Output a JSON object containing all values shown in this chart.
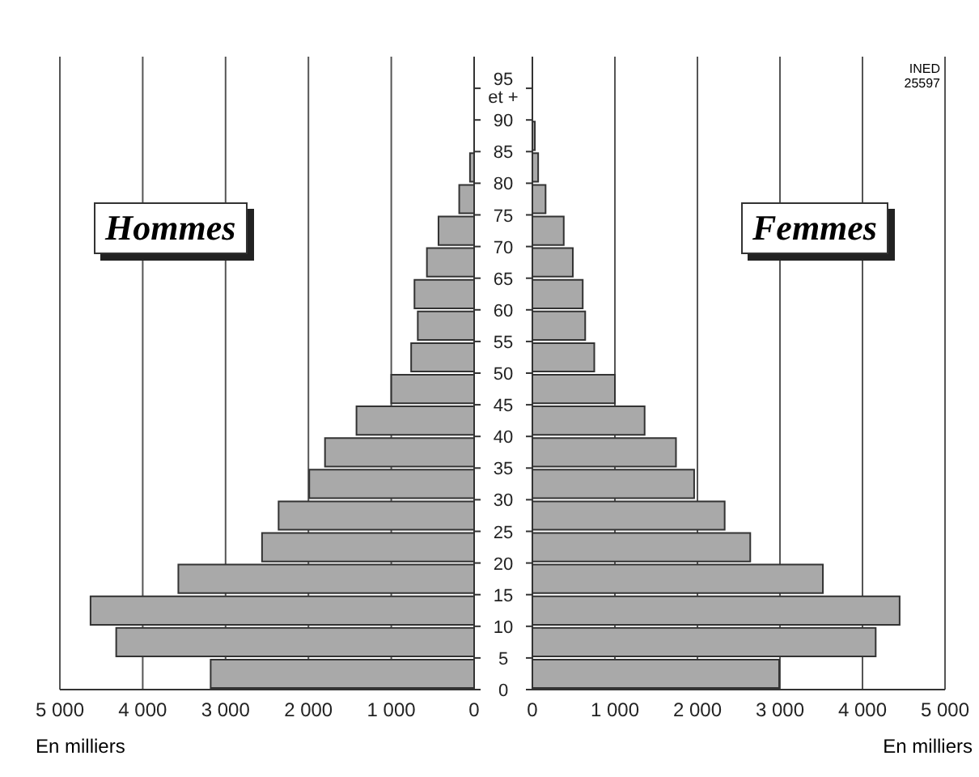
{
  "chart_data": [
    {
      "type": "histogram",
      "orientation": "horizontal",
      "bins": [
        0,
        5,
        10,
        15,
        20,
        25,
        30,
        35,
        40,
        45,
        50,
        55,
        60,
        65,
        70,
        75,
        80,
        85,
        90,
        95
      ],
      "series": [
        {
          "name": "Hommes",
          "color": "#a9a9a9",
          "values": [
            3180,
            4320,
            4630,
            3570,
            2560,
            2360,
            1990,
            1800,
            1420,
            1000,
            760,
            680,
            720,
            570,
            430,
            180,
            50,
            null,
            null
          ]
        }
      ],
      "xlabel": "En milliers",
      "xlim": [
        5000,
        0
      ],
      "xticks": [
        {
          "value": 5000,
          "label": "5 000"
        },
        {
          "value": 4000,
          "label": "4 000"
        },
        {
          "value": 3000,
          "label": "3 000"
        },
        {
          "value": 2000,
          "label": "2 000"
        },
        {
          "value": 1000,
          "label": "1 000"
        },
        0
      ],
      "ylim": [
        0,
        100
      ],
      "yticks": [
        0,
        5,
        10,
        15,
        20,
        25,
        30,
        35,
        40,
        45,
        50,
        55,
        60,
        65,
        70,
        75,
        80,
        85,
        90,
        {
          "value": 95,
          "label": "95\net +"
        }
      ],
      "grid": "x"
    },
    {
      "type": "histogram",
      "orientation": "horizontal",
      "bins": [
        0,
        5,
        10,
        15,
        20,
        25,
        30,
        35,
        40,
        45,
        50,
        55,
        60,
        65,
        70,
        75,
        80,
        85,
        90,
        95
      ],
      "series": [
        {
          "name": "Femmes",
          "color": "#a9a9a9",
          "values": [
            2990,
            4160,
            4450,
            3520,
            2640,
            2330,
            1960,
            1740,
            1360,
            1000,
            750,
            640,
            610,
            490,
            380,
            160,
            70,
            30,
            null
          ]
        }
      ],
      "xlabel": "En milliers",
      "xlim": [
        0,
        5000
      ],
      "xticks": [
        0,
        {
          "value": 1000,
          "label": "1 000"
        },
        {
          "value": 2000,
          "label": "2 000"
        },
        {
          "value": 3000,
          "label": "3 000"
        },
        {
          "value": 4000,
          "label": "4 000"
        },
        {
          "value": 5000,
          "label": "5 000"
        }
      ],
      "ylim": [
        0,
        100
      ],
      "yticks": [
        0,
        5,
        10,
        15,
        20,
        25,
        30,
        35,
        40,
        45,
        50,
        55,
        60,
        65,
        70,
        75,
        80,
        85,
        90,
        95
      ],
      "grid": "x",
      "tick_labels": "x",
      "annotations": [
        "INED\n25597"
      ]
    }
  ]
}
